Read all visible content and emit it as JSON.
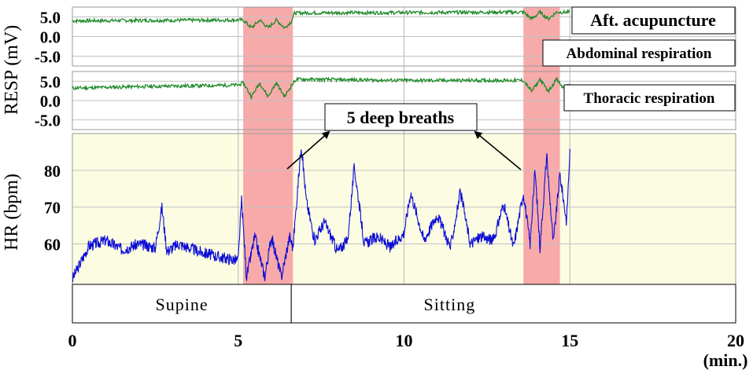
{
  "chart_data": {
    "type": "line",
    "colors": {
      "resp": "#1f8a2a",
      "hr": "#0b0bd6",
      "deep_breath_band": "#f7a5a5",
      "hr_background": "#fbfce2"
    },
    "x_axis": {
      "range": [
        0,
        20
      ],
      "ticks": [
        {
          "value": 0,
          "label": "0"
        },
        {
          "value": 5,
          "label": "5"
        },
        {
          "value": 10,
          "label": "10"
        },
        {
          "value": 15,
          "label": "15"
        },
        {
          "value": 20,
          "label": "20"
        }
      ],
      "unit_label": "(min.)"
    },
    "resp_axis_label": "RESP (mV)",
    "hr_axis_label": "HR (bpm)",
    "abdominal_panel": {
      "ylim": [
        -7.5,
        7.5
      ],
      "ticks": [
        {
          "value": 5,
          "label": "5.0"
        },
        {
          "value": 0,
          "label": "0.0"
        },
        {
          "value": -5,
          "label": "-5.0"
        }
      ],
      "label": "Abdominal respiration",
      "status_label": "Aft. acupuncture"
    },
    "thoracic_panel": {
      "ylim": [
        -7.5,
        7.5
      ],
      "ticks": [
        {
          "value": 5,
          "label": "5.0"
        },
        {
          "value": 0,
          "label": "0.0"
        },
        {
          "value": -5,
          "label": "-5.0"
        }
      ],
      "label": "Thoracic respiration"
    },
    "hr_panel": {
      "ylim": [
        49,
        90
      ],
      "ticks": [
        {
          "value": 60,
          "label": "60"
        },
        {
          "value": 70,
          "label": "70"
        },
        {
          "value": 80,
          "label": "80"
        }
      ]
    },
    "deep_breath_intervals": [
      [
        5.15,
        6.65
      ],
      [
        13.6,
        14.7
      ]
    ],
    "annotation": {
      "text": "5 deep breaths",
      "arrow_targets": [
        [
          6.65,
          80
        ],
        [
          13.6,
          80
        ]
      ]
    },
    "posture": [
      {
        "label": "Supine",
        "range": [
          0,
          6.6
        ]
      },
      {
        "label": "Sitting",
        "range": [
          6.6,
          20
        ]
      }
    ],
    "series": [
      {
        "key": "abdominal",
        "x": [
          0,
          2,
          5,
          5.15,
          5.4,
          5.65,
          5.9,
          6.15,
          6.4,
          6.6,
          6.7,
          10,
          13.6,
          13.85,
          14.1,
          14.35,
          14.6,
          15
        ],
        "y": [
          4.0,
          4.1,
          4.2,
          4.2,
          2.2,
          4.2,
          2.2,
          4.2,
          2.2,
          3.8,
          6.0,
          6.1,
          6.2,
          4.5,
          6.2,
          4.5,
          6.2,
          6.2
        ]
      },
      {
        "key": "thoracic",
        "x": [
          0,
          2,
          5,
          5.15,
          5.4,
          5.65,
          5.9,
          6.15,
          6.4,
          6.6,
          6.75,
          10,
          13.6,
          13.85,
          14.1,
          14.35,
          14.6,
          14.8,
          15
        ],
        "y": [
          3.2,
          3.6,
          4.0,
          4.6,
          1.0,
          4.6,
          1.0,
          4.6,
          1.0,
          3.8,
          5.5,
          5.2,
          5.2,
          2.4,
          5.5,
          2.4,
          5.5,
          3.2,
          4.0
        ]
      },
      {
        "key": "hr",
        "x": [
          0,
          0.5,
          1,
          1.5,
          2,
          2.5,
          2.7,
          2.85,
          3.2,
          3.8,
          4.4,
          5.0,
          5.1,
          5.25,
          5.5,
          5.8,
          6.0,
          6.3,
          6.55,
          6.65,
          6.9,
          7.05,
          7.3,
          7.6,
          8.0,
          8.3,
          8.5,
          8.8,
          9.2,
          9.6,
          10.0,
          10.2,
          10.6,
          11.0,
          11.4,
          11.7,
          12.0,
          12.3,
          12.7,
          13.0,
          13.3,
          13.6,
          13.8,
          13.95,
          14.1,
          14.3,
          14.5,
          14.7,
          14.9,
          15.0
        ],
        "y": [
          50.5,
          59.5,
          61,
          58.5,
          60,
          59,
          70,
          58,
          60,
          58,
          56.5,
          55.5,
          72,
          51,
          62,
          51,
          62,
          51,
          62,
          59,
          87,
          72,
          61,
          66,
          58,
          61,
          81,
          60,
          62,
          59,
          63,
          74,
          61,
          68,
          59,
          74,
          60,
          62,
          61,
          71,
          59,
          74,
          60,
          80,
          59,
          84,
          60,
          79,
          66,
          85
        ]
      }
    ]
  }
}
